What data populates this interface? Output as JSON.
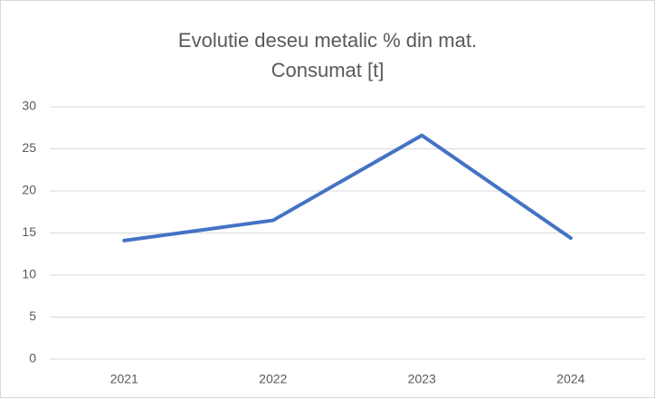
{
  "chart_data": {
    "type": "line",
    "title": "Evolutie deseu metalic % din mat. Consumat [t]",
    "categories": [
      "2021",
      "2022",
      "2023",
      "2024"
    ],
    "series": [
      {
        "color": "#4472c4",
        "values": [
          14.1,
          16.5,
          26.6,
          14.4
        ]
      }
    ],
    "ylim": [
      0,
      30
    ],
    "yticks": [
      0,
      5,
      10,
      15,
      20,
      25,
      30
    ],
    "grid": true
  }
}
